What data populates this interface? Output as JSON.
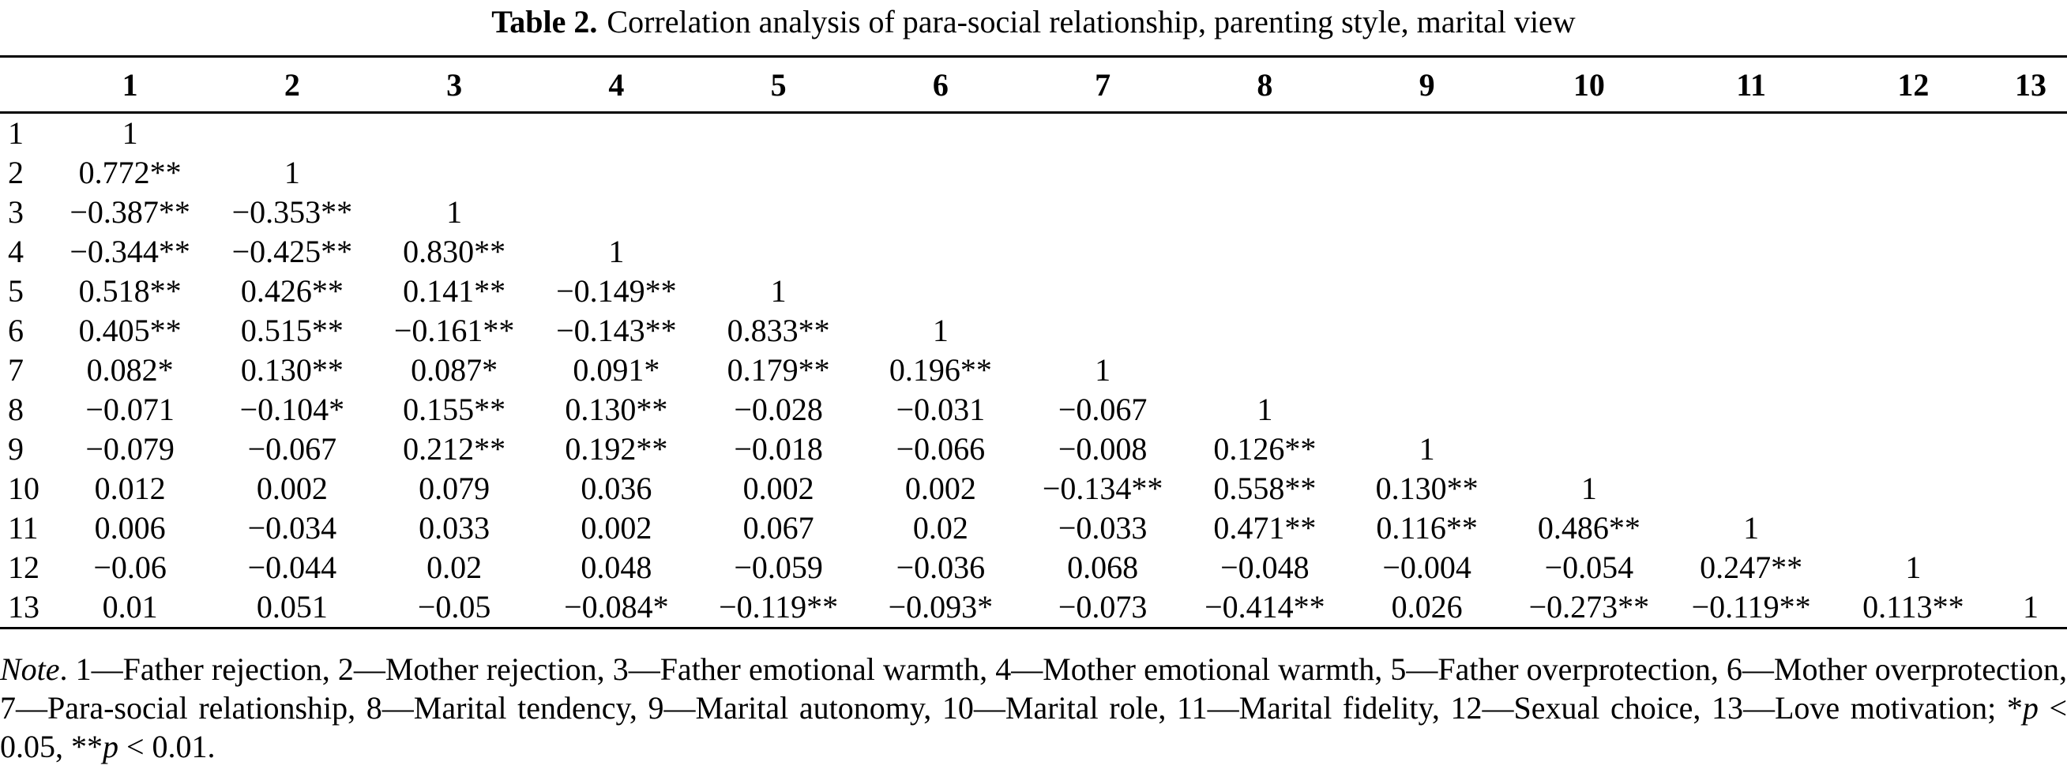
{
  "caption": {
    "label": "Table 2.",
    "text": "Correlation analysis of para-social relationship, parenting style, marital view"
  },
  "table": {
    "col_headers": [
      "1",
      "2",
      "3",
      "4",
      "5",
      "6",
      "7",
      "8",
      "9",
      "10",
      "11",
      "12",
      "13"
    ],
    "rows": [
      {
        "label": "1",
        "cells": [
          "1"
        ]
      },
      {
        "label": "2",
        "cells": [
          "0.772**",
          "1"
        ]
      },
      {
        "label": "3",
        "cells": [
          "−0.387**",
          "−0.353**",
          "1"
        ]
      },
      {
        "label": "4",
        "cells": [
          "−0.344**",
          "−0.425**",
          "0.830**",
          "1"
        ]
      },
      {
        "label": "5",
        "cells": [
          "0.518**",
          "0.426**",
          "0.141**",
          "−0.149**",
          "1"
        ]
      },
      {
        "label": "6",
        "cells": [
          "0.405**",
          "0.515**",
          "−0.161**",
          "−0.143**",
          "0.833**",
          "1"
        ]
      },
      {
        "label": "7",
        "cells": [
          "0.082*",
          "0.130**",
          "0.087*",
          "0.091*",
          "0.179**",
          "0.196**",
          "1"
        ]
      },
      {
        "label": "8",
        "cells": [
          "−0.071",
          "−0.104*",
          "0.155**",
          "0.130**",
          "−0.028",
          "−0.031",
          "−0.067",
          "1"
        ]
      },
      {
        "label": "9",
        "cells": [
          "−0.079",
          "−0.067",
          "0.212**",
          "0.192**",
          "−0.018",
          "−0.066",
          "−0.008",
          "0.126**",
          "1"
        ]
      },
      {
        "label": "10",
        "cells": [
          "0.012",
          "0.002",
          "0.079",
          "0.036",
          "0.002",
          "0.002",
          "−0.134**",
          "0.558**",
          "0.130**",
          "1"
        ]
      },
      {
        "label": "11",
        "cells": [
          "0.006",
          "−0.034",
          "0.033",
          "0.002",
          "0.067",
          "0.02",
          "−0.033",
          "0.471**",
          "0.116**",
          "0.486**",
          "1"
        ]
      },
      {
        "label": "12",
        "cells": [
          "−0.06",
          "−0.044",
          "0.02",
          "0.048",
          "−0.059",
          "−0.036",
          "0.068",
          "−0.048",
          "−0.004",
          "−0.054",
          "0.247**",
          "1"
        ]
      },
      {
        "label": "13",
        "cells": [
          "0.01",
          "0.051",
          "−0.05",
          "−0.084*",
          "−0.119**",
          "−0.093*",
          "−0.073",
          "−0.414**",
          "0.026",
          "−0.273**",
          "−0.119**",
          "0.113**",
          "1"
        ]
      }
    ]
  },
  "note": {
    "label": "Note",
    "body": ". 1—Father rejection, 2—Mother rejection, 3—Father emotional warmth, 4—Mother emotional warmth, 5—Father overprotection, 6—Mother overprotection, 7—Para-social relationship, 8—Marital tendency, 9—Marital autonomy, 10—Marital role, 11—Marital fidelity, 12—Sexual choice, 13—Love motivation; ",
    "sig": [
      {
        "stars": "*",
        "p": "p",
        "rest": " < 0.05, "
      },
      {
        "stars": "**",
        "p": "p",
        "rest": " < 0.01."
      }
    ]
  }
}
